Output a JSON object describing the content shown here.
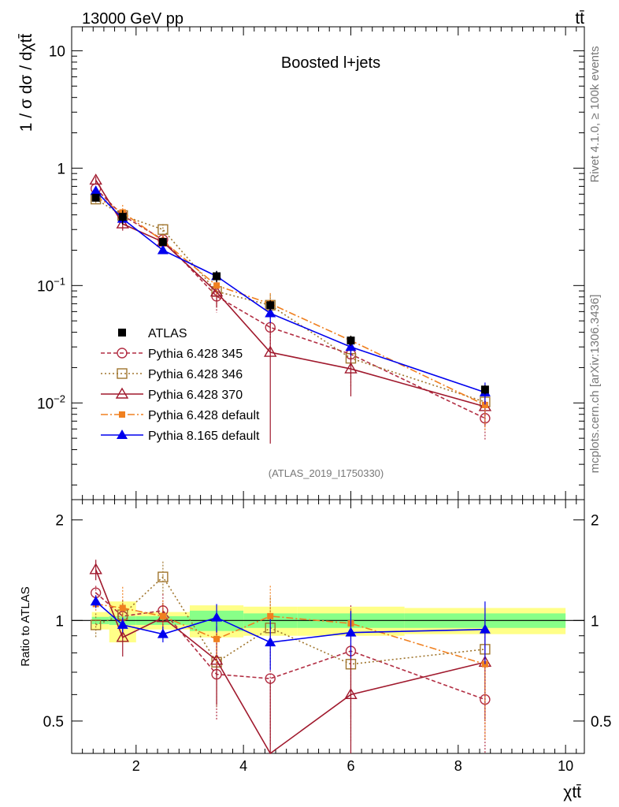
{
  "header": {
    "left": "13000 GeV pp",
    "right": "tt̄"
  },
  "side_labels": {
    "rivet": "Rivet 4.1.0, ≥ 100k events",
    "mcplots": "mcplots.cern.ch [arXiv:1306.3436]"
  },
  "chart_data": {
    "type": "line",
    "title": "Boosted l+jets",
    "analysis_id": "(ATLAS_2019_I1750330)",
    "xlabel": "χtt̄",
    "ylabel": "1 / σ dσ / dχtt̄",
    "ratio_ylabel": "Ratio to ATLAS",
    "x_ticks": [
      "2",
      "4",
      "6",
      "8",
      "10"
    ],
    "main_y_ticks": [
      {
        "value": 10,
        "label": "10"
      },
      {
        "value": 1,
        "label": "1"
      },
      {
        "value": 0.1,
        "label": "10−1"
      },
      {
        "value": 0.01,
        "label": "10−2"
      }
    ],
    "ratio_y_ticks": [
      "0.5",
      "1",
      "2"
    ],
    "xlim": [
      0.8,
      10.35
    ],
    "ylim_main": [
      0.0015,
      16
    ],
    "ylim_ratio": [
      0.4,
      2.3
    ],
    "bins": [
      [
        1,
        1.5
      ],
      [
        1.5,
        2
      ],
      [
        2,
        3
      ],
      [
        3,
        4
      ],
      [
        4,
        5
      ],
      [
        5,
        7
      ],
      [
        7,
        10
      ]
    ],
    "x": [
      1.25,
      1.75,
      2.5,
      3.5,
      4.5,
      6,
      8.5
    ],
    "data": {
      "name": "ATLAS",
      "values": [
        0.56,
        0.385,
        0.235,
        0.12,
        0.068,
        0.034,
        0.013
      ],
      "rel_err_stat": [
        0.025,
        0.03,
        0.03,
        0.07,
        0.05,
        0.05,
        0.05
      ],
      "rel_err_total": [
        0.06,
        0.14,
        0.06,
        0.11,
        0.1,
        0.1,
        0.09
      ]
    },
    "series": [
      {
        "name": "Pythia 6.428 345",
        "color": "#b22d42",
        "dash": "5,3",
        "marker": "circle-open",
        "values": [
          0.67,
          0.395,
          0.246,
          0.081,
          0.044,
          0.026,
          0.0074
        ],
        "ratio": [
          1.21,
          1.03,
          1.07,
          0.69,
          0.67,
          0.81,
          0.58
        ],
        "ratio_err": [
          0.06,
          0.12,
          0.13,
          0.19,
          0.25,
          0.3,
          0.2
        ]
      },
      {
        "name": "Pythia 6.428 346",
        "color": "#a0752d",
        "dash": "2,3",
        "marker": "square-open",
        "values": [
          0.545,
          0.395,
          0.3,
          0.089,
          0.068,
          0.024,
          0.0102
        ],
        "ratio": [
          0.97,
          1.04,
          1.35,
          0.75,
          0.95,
          0.74,
          0.82
        ],
        "ratio_err": [
          0.08,
          0.11,
          0.15,
          0.2,
          0.22,
          0.31,
          0.2
        ]
      },
      {
        "name": "Pythia 6.428 370",
        "color": "#a0192d",
        "dash": "",
        "marker": "triangle-open",
        "values": [
          0.79,
          0.335,
          0.235,
          0.088,
          0.027,
          0.0195,
          0.0093
        ],
        "ratio": [
          1.42,
          0.89,
          1.02,
          0.76,
          0.36,
          0.6,
          0.75
        ],
        "ratio_err": [
          0.1,
          0.11,
          0.11,
          0.2,
          0.3,
          0.25,
          0.25
        ]
      },
      {
        "name": "Pythia 6.428 default",
        "color": "#f08020",
        "dash": "9,3,2,3",
        "marker": "square-filled",
        "values": [
          0.57,
          0.42,
          0.24,
          0.1,
          0.07,
          0.034,
          0.0096
        ],
        "ratio": [
          1.12,
          1.09,
          1.03,
          0.88,
          1.03,
          0.98,
          0.74
        ],
        "ratio_err": [
          0.06,
          0.17,
          0.12,
          0.15,
          0.24,
          0.1,
          0.3
        ]
      },
      {
        "name": "Pythia 8.165 default",
        "color": "#0000ee",
        "dash": "",
        "marker": "triangle-filled",
        "values": [
          0.64,
          0.37,
          0.2,
          0.12,
          0.058,
          0.03,
          0.0123
        ],
        "ratio": [
          1.14,
          0.97,
          0.91,
          1.02,
          0.86,
          0.92,
          0.94
        ],
        "ratio_err": [
          0.05,
          0.05,
          0.05,
          0.1,
          0.15,
          0.15,
          0.2
        ]
      }
    ]
  }
}
